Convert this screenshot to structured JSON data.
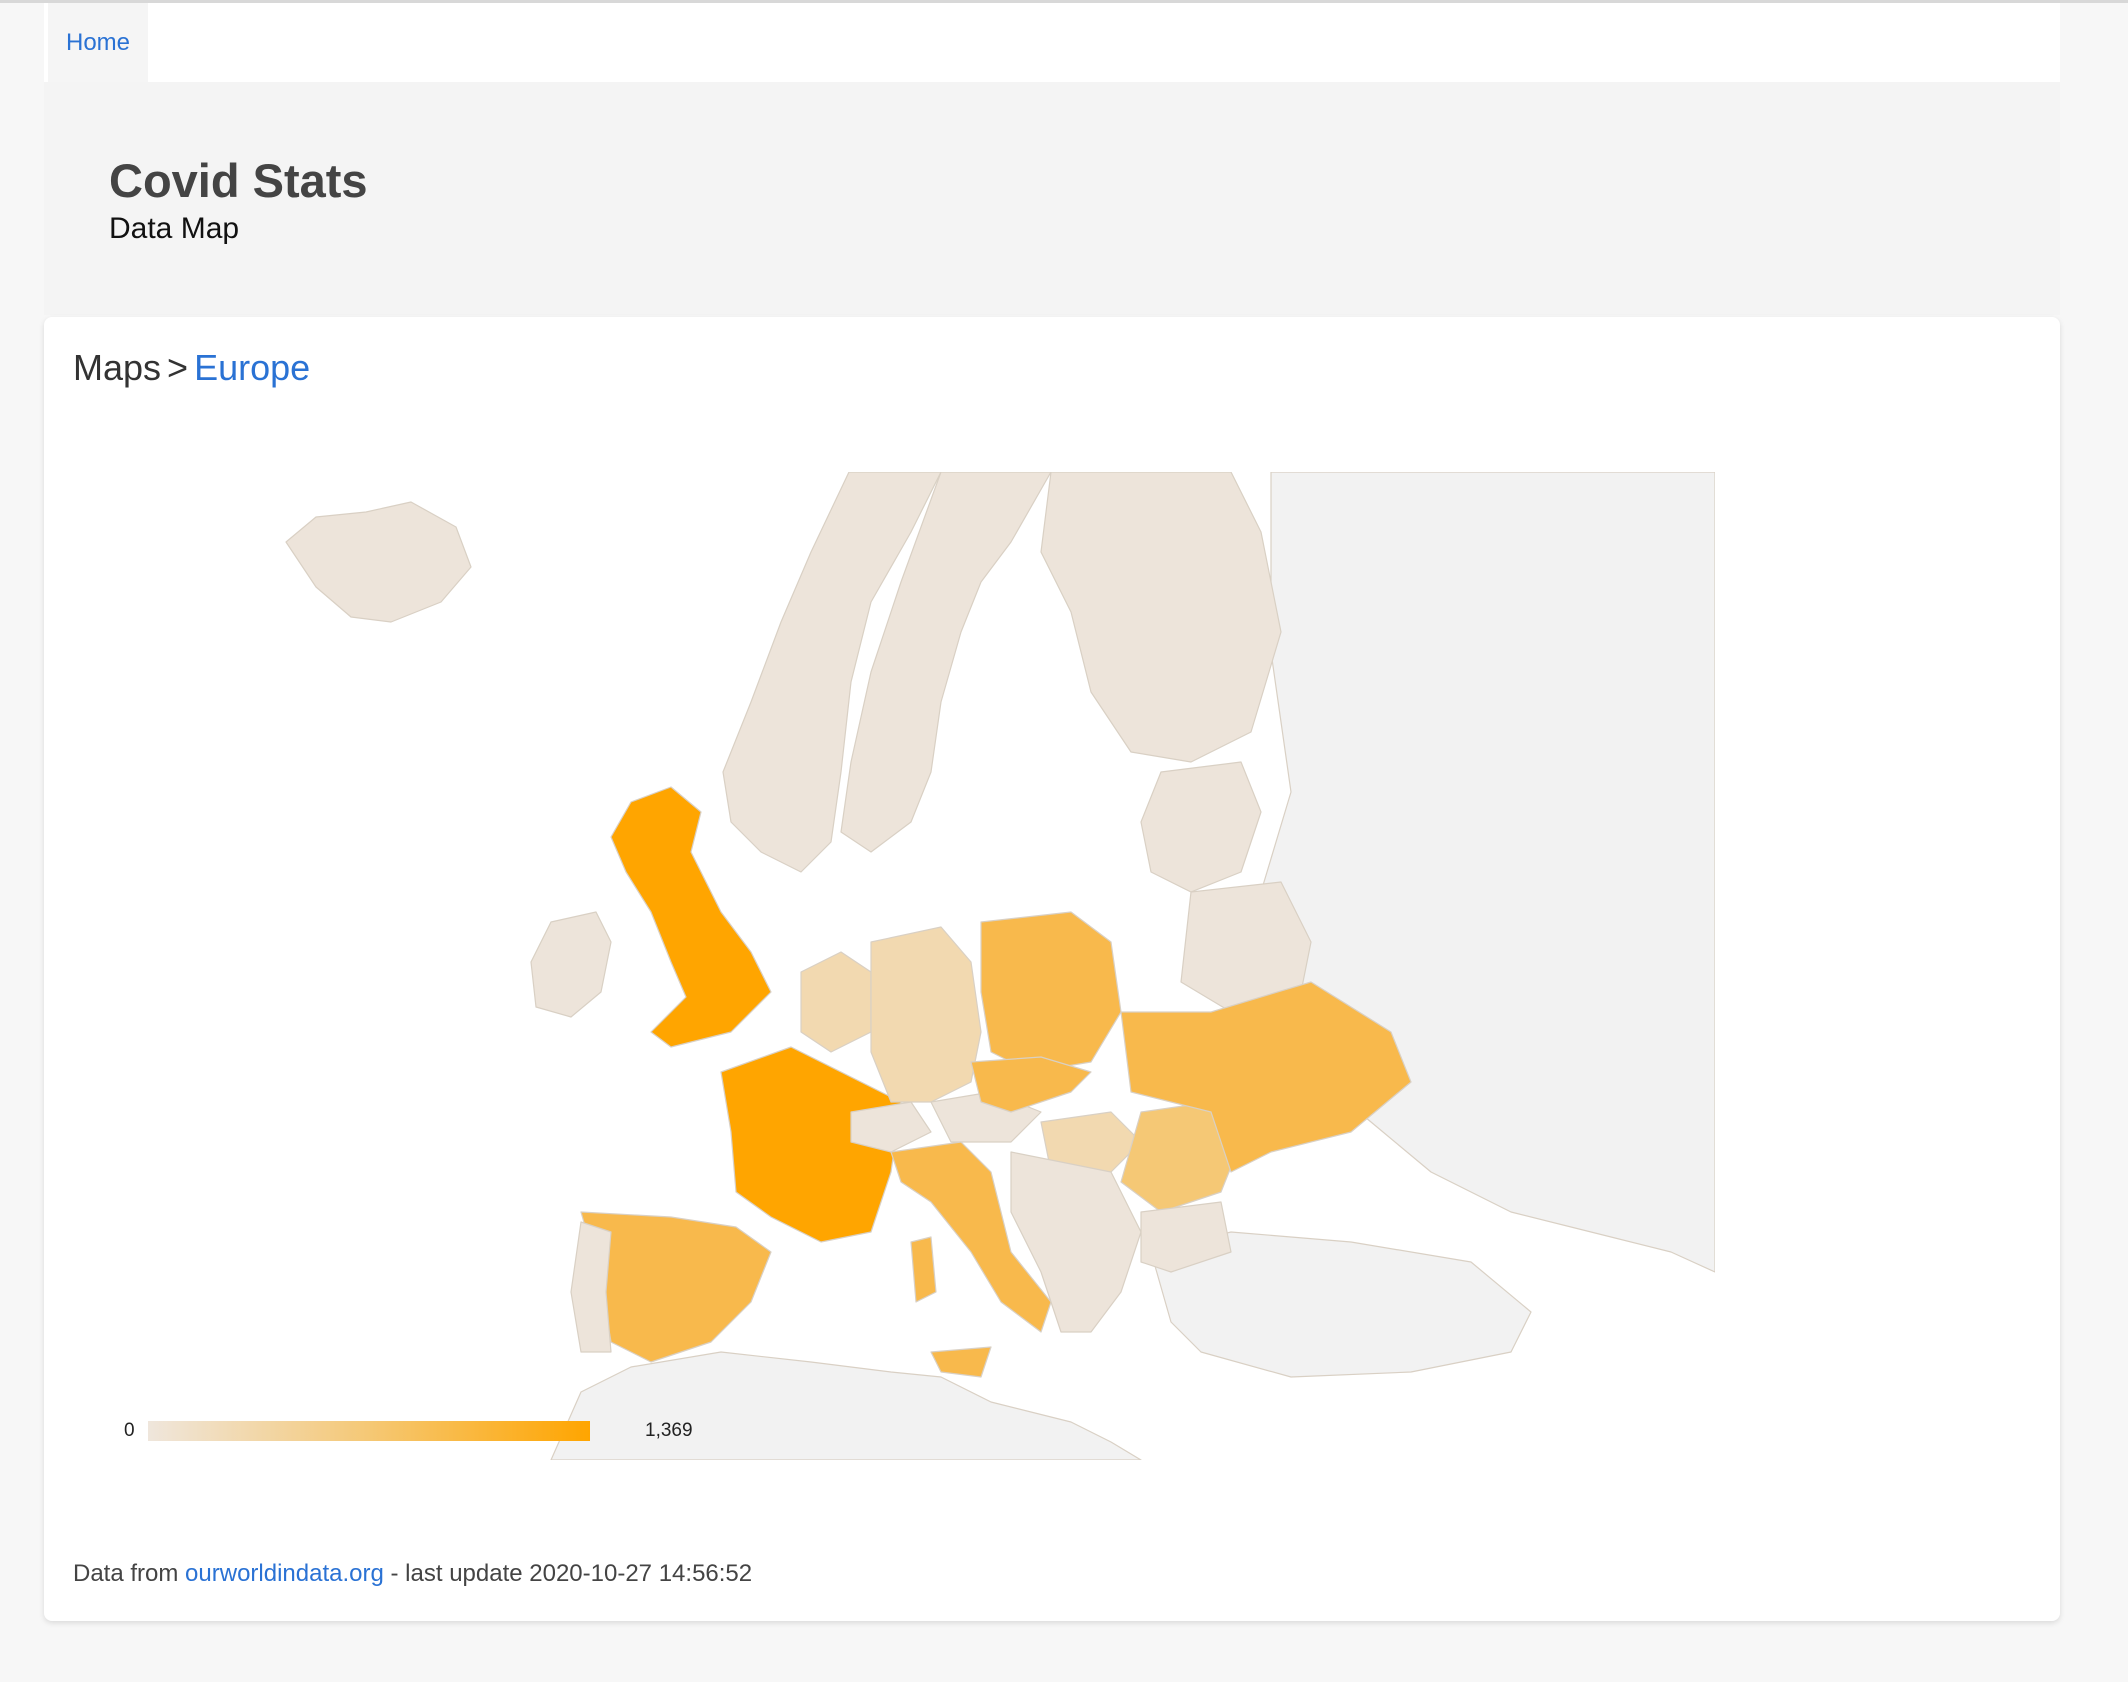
{
  "nav": {
    "home_label": "Home"
  },
  "header": {
    "title": "Covid Stats",
    "subtitle": "Data Map"
  },
  "breadcrumb": {
    "root": "Maps",
    "separator": ">",
    "current": "Europe"
  },
  "map": {
    "legend_min": "0",
    "legend_max": "1,369",
    "colors": {
      "land_no_data": "#f2f2f2",
      "land_low": "#ede4da",
      "low_mid": "#f2d9b0",
      "mid": "#f5c875",
      "mid_high": "#f8b94c",
      "high": "#ffa500",
      "water": "#ffffff"
    },
    "regions": {
      "iceland": "low",
      "ireland": "low",
      "uk": "high",
      "france": "high",
      "spain": "mid_high",
      "portugal": "low",
      "italy": "mid_high",
      "germany": "low_mid",
      "poland": "mid_high",
      "czechia": "mid_high",
      "ukraine": "mid_high",
      "romania": "mid",
      "hungary": "low_mid",
      "norway": "low",
      "sweden": "low",
      "finland": "low",
      "baltics": "low",
      "belarus": "low",
      "balkans": "low",
      "benelux": "low_mid",
      "switzerland": "low",
      "austria": "low",
      "bulgaria": "low"
    }
  },
  "footer": {
    "prefix": "Data from",
    "link_text": "ourworldindata.org",
    "suffix": "- last update 2020-10-27 14:56:52"
  }
}
